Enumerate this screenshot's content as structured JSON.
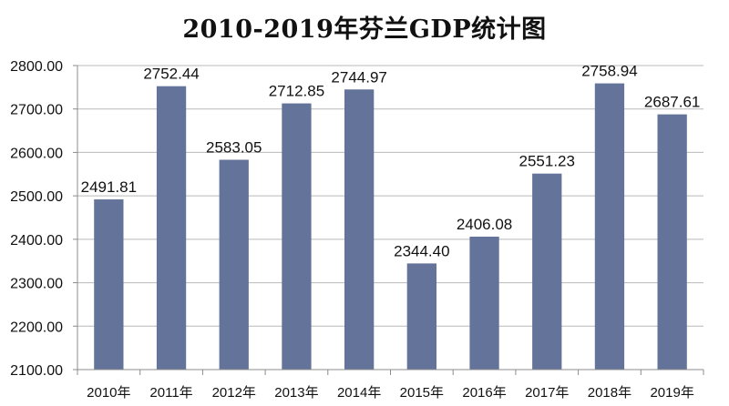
{
  "chart_data": {
    "type": "bar",
    "title": "2010-2019年芬兰GDP统计图",
    "categories": [
      "2010年",
      "2011年",
      "2012年",
      "2013年",
      "2014年",
      "2015年",
      "2016年",
      "2017年",
      "2018年",
      "2019年"
    ],
    "values": [
      2491.81,
      2752.44,
      2583.05,
      2712.85,
      2744.97,
      2344.4,
      2406.08,
      2551.23,
      2758.94,
      2687.61
    ],
    "value_labels": [
      "2491.81",
      "2752.44",
      "2583.05",
      "2712.85",
      "2744.97",
      "2344.40",
      "2406.08",
      "2551.23",
      "2758.94",
      "2687.61"
    ],
    "y_ticks": [
      2100,
      2200,
      2300,
      2400,
      2500,
      2600,
      2700,
      2800
    ],
    "y_tick_labels": [
      "2100.00",
      "2200.00",
      "2300.00",
      "2400.00",
      "2500.00",
      "2600.00",
      "2700.00",
      "2800.00"
    ],
    "ylim": [
      2100,
      2800
    ],
    "xlabel": "",
    "ylabel": "",
    "grid": true,
    "legend": "none",
    "colors": {
      "bar": "#647399",
      "grid": "#b9b9b9",
      "axis": "#8c8c8c",
      "text": "#111111"
    }
  }
}
